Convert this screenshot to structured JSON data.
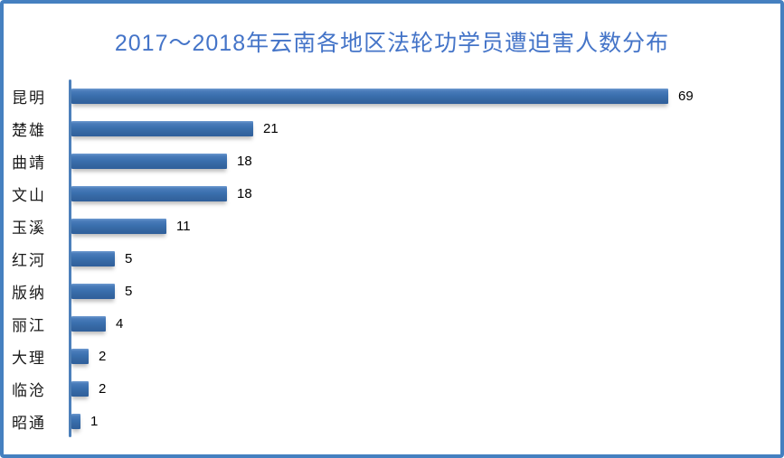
{
  "chart_data": {
    "type": "bar",
    "orientation": "horizontal",
    "title": "2017～2018年云南各地区法轮功学员遭迫害人数分布",
    "categories": [
      "昆明",
      "楚雄",
      "曲靖",
      "文山",
      "玉溪",
      "红河",
      "版纳",
      "丽江",
      "大理",
      "临沧",
      "昭通"
    ],
    "values": [
      69,
      21,
      18,
      18,
      11,
      5,
      5,
      4,
      2,
      2,
      1
    ],
    "xlabel": "",
    "ylabel": "",
    "xlim": [
      0,
      75
    ],
    "data_labels": true,
    "legend": "none",
    "gridlines": false
  },
  "colors": {
    "bar_fill": "#3a6fae",
    "bar_fill_top": "#6f9ad1",
    "bar_fill_bottom": "#2f5f9c",
    "title_color": "#4474c8",
    "axis_line": "#4d80bb",
    "frame_border": "#4580c0",
    "category_label": "#1a1a1a",
    "value_label": "#000000",
    "background": "#ffffff"
  }
}
